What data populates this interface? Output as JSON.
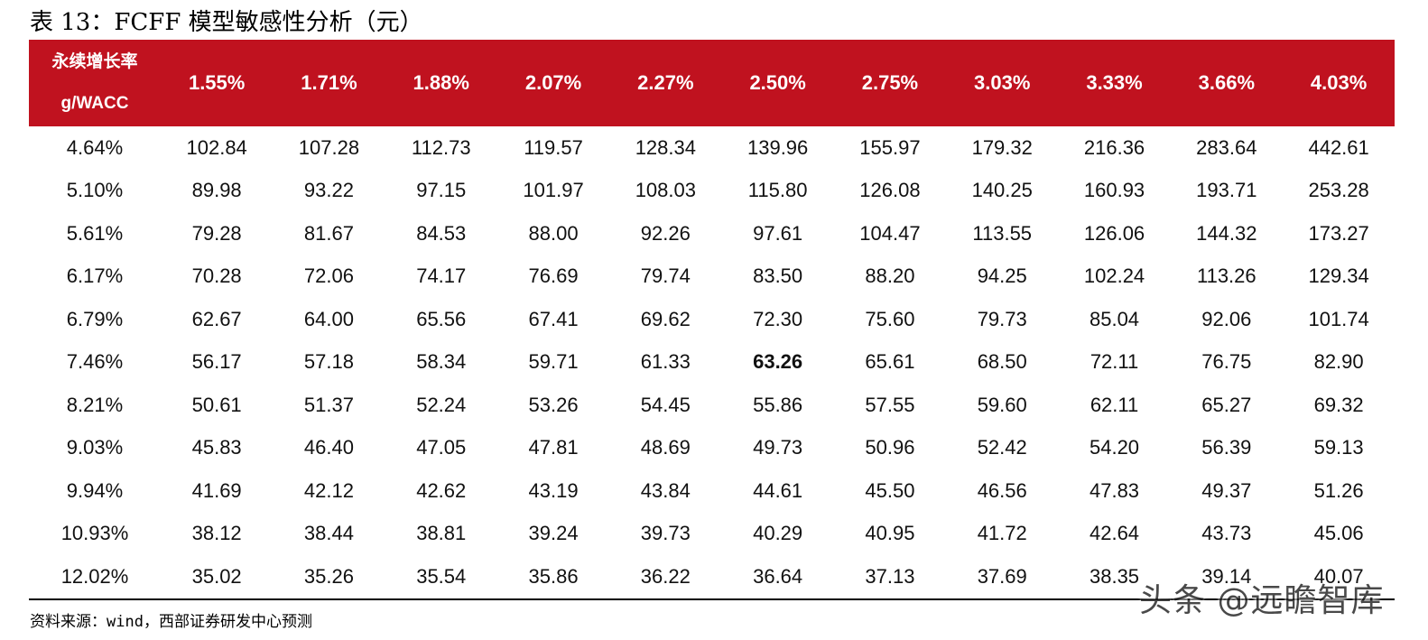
{
  "title": "表 13：FCFF 模型敏感性分析（元）",
  "header": {
    "corner_line1": "永续增长率",
    "corner_line2": "g/WACC",
    "columns": [
      "1.55%",
      "1.71%",
      "1.88%",
      "2.07%",
      "2.27%",
      "2.50%",
      "2.75%",
      "3.03%",
      "3.33%",
      "3.66%",
      "4.03%"
    ]
  },
  "rows": [
    {
      "label": "4.64%",
      "values": [
        "102.84",
        "107.28",
        "112.73",
        "119.57",
        "128.34",
        "139.96",
        "155.97",
        "179.32",
        "216.36",
        "283.64",
        "442.61"
      ]
    },
    {
      "label": "5.10%",
      "values": [
        "89.98",
        "93.22",
        "97.15",
        "101.97",
        "108.03",
        "115.80",
        "126.08",
        "140.25",
        "160.93",
        "193.71",
        "253.28"
      ]
    },
    {
      "label": "5.61%",
      "values": [
        "79.28",
        "81.67",
        "84.53",
        "88.00",
        "92.26",
        "97.61",
        "104.47",
        "113.55",
        "126.06",
        "144.32",
        "173.27"
      ]
    },
    {
      "label": "6.17%",
      "values": [
        "70.28",
        "72.06",
        "74.17",
        "76.69",
        "79.74",
        "83.50",
        "88.20",
        "94.25",
        "102.24",
        "113.26",
        "129.34"
      ]
    },
    {
      "label": "6.79%",
      "values": [
        "62.67",
        "64.00",
        "65.56",
        "67.41",
        "69.62",
        "72.30",
        "75.60",
        "79.73",
        "85.04",
        "92.06",
        "101.74"
      ]
    },
    {
      "label": "7.46%",
      "values": [
        "56.17",
        "57.18",
        "58.34",
        "59.71",
        "61.33",
        "63.26",
        "65.61",
        "68.50",
        "72.11",
        "76.75",
        "82.90"
      ]
    },
    {
      "label": "8.21%",
      "values": [
        "50.61",
        "51.37",
        "52.24",
        "53.26",
        "54.45",
        "55.86",
        "57.55",
        "59.60",
        "62.11",
        "65.27",
        "69.32"
      ]
    },
    {
      "label": "9.03%",
      "values": [
        "45.83",
        "46.40",
        "47.05",
        "47.81",
        "48.69",
        "49.73",
        "50.96",
        "52.42",
        "54.20",
        "56.39",
        "59.13"
      ]
    },
    {
      "label": "9.94%",
      "values": [
        "41.69",
        "42.12",
        "42.62",
        "43.19",
        "43.84",
        "44.61",
        "45.50",
        "46.56",
        "47.83",
        "49.37",
        "51.26"
      ]
    },
    {
      "label": "10.93%",
      "values": [
        "38.12",
        "38.44",
        "38.81",
        "39.24",
        "39.73",
        "40.29",
        "40.95",
        "41.72",
        "42.64",
        "43.73",
        "45.06"
      ]
    },
    {
      "label": "12.02%",
      "values": [
        "35.02",
        "35.26",
        "35.54",
        "35.86",
        "36.22",
        "36.64",
        "37.13",
        "37.69",
        "38.35",
        "39.14",
        "40.07"
      ]
    }
  ],
  "highlight": {
    "row": 5,
    "col": 5
  },
  "source": "资料来源：wind，西部证券研发中心预测",
  "watermark": "头条 @远瞻智库",
  "colors": {
    "header_bg": "#c0121f",
    "header_text": "#ffffff"
  }
}
